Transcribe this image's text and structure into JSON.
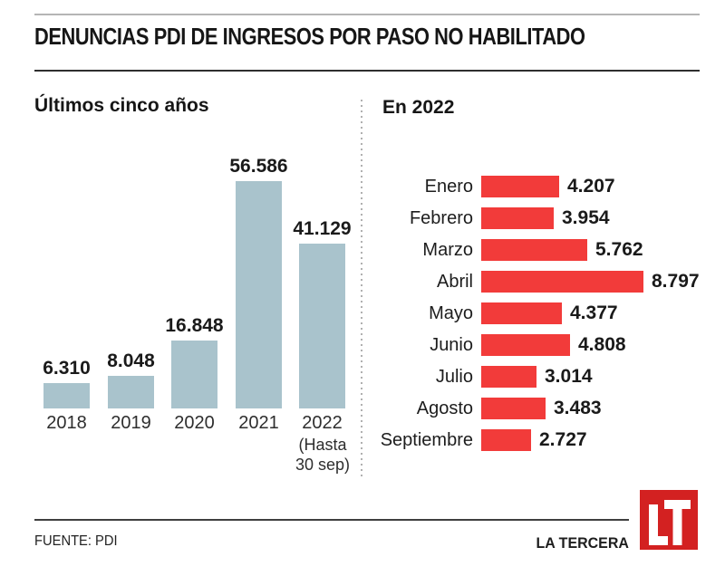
{
  "header": {
    "title": "DENUNCIAS PDI DE INGRESOS POR PASO NO HABILITADO"
  },
  "colors": {
    "annual_bar": "#a9c3cc",
    "monthly_bar": "#f23b3a",
    "logo_red": "#d32121",
    "rule_dark": "#2e2e2e",
    "rule_light": "#b5b5b5"
  },
  "chart_data": [
    {
      "type": "bar",
      "orientation": "vertical",
      "title": "Últimos cinco años",
      "categories": [
        "2018",
        "2019",
        "2020",
        "2021",
        "2022"
      ],
      "values": [
        6310,
        8048,
        16848,
        56586,
        41129
      ],
      "value_labels": [
        "6.310",
        "8.048",
        "16.848",
        "56.586",
        "41.129"
      ],
      "note_lines": [
        "(Hasta",
        "30 sep)"
      ],
      "note_category": "2022",
      "bar_color": "#a9c3cc",
      "ylim": [
        0,
        56586
      ],
      "grid": false,
      "legend": false
    },
    {
      "type": "bar",
      "orientation": "horizontal",
      "title": "En 2022",
      "categories": [
        "Enero",
        "Febrero",
        "Marzo",
        "Abril",
        "Mayo",
        "Junio",
        "Julio",
        "Agosto",
        "Septiembre"
      ],
      "values": [
        4207,
        3954,
        5762,
        8797,
        4377,
        4808,
        3014,
        3483,
        2727
      ],
      "value_labels": [
        "4.207",
        "3.954",
        "5.762",
        "8.797",
        "4.377",
        "4.808",
        "3.014",
        "3.483",
        "2.727"
      ],
      "bar_color": "#f23b3a",
      "xlim": [
        0,
        8797
      ],
      "grid": false,
      "legend": false
    }
  ],
  "footer": {
    "source_label": "FUENTE: PDI",
    "brand": "LA TERCERA",
    "logo_text": "LT"
  }
}
